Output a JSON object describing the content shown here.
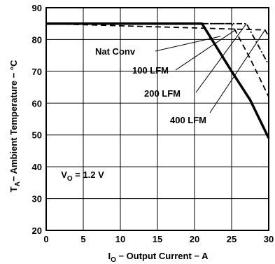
{
  "chart_data": {
    "type": "line",
    "xlabel": {
      "main": "I",
      "sub": "O",
      "rest": " − Output Current − A"
    },
    "ylabel": {
      "main": "T",
      "sub": "A",
      "rest": "− Ambient Temperature − °C"
    },
    "xlim": [
      0,
      30
    ],
    "ylim": [
      20,
      90
    ],
    "xticks": [
      0,
      5,
      10,
      15,
      20,
      25,
      30
    ],
    "yticks": [
      20,
      30,
      40,
      50,
      60,
      70,
      80,
      90
    ],
    "grid": true,
    "series": [
      {
        "name": "Nat Conv",
        "style": "solid",
        "x": [
          0,
          21,
          25,
          27.5,
          30
        ],
        "y": [
          85,
          85,
          70,
          61,
          49
        ]
      },
      {
        "name": "100 LFM",
        "style": "dash",
        "x": [
          0,
          25,
          27.5,
          30
        ],
        "y": [
          85,
          85,
          74,
          62
        ]
      },
      {
        "name": "200 LFM",
        "style": "dash-dot",
        "x": [
          0,
          27,
          30
        ],
        "y": [
          85,
          85,
          72
        ]
      },
      {
        "name": "400 LFM",
        "style": "dash",
        "x": [
          0,
          29.5,
          30
        ],
        "y": [
          85,
          83,
          81
        ]
      }
    ],
    "annotations": {
      "condition": {
        "main": "V",
        "sub": "O",
        "rest": " = 1.2 V"
      }
    }
  }
}
